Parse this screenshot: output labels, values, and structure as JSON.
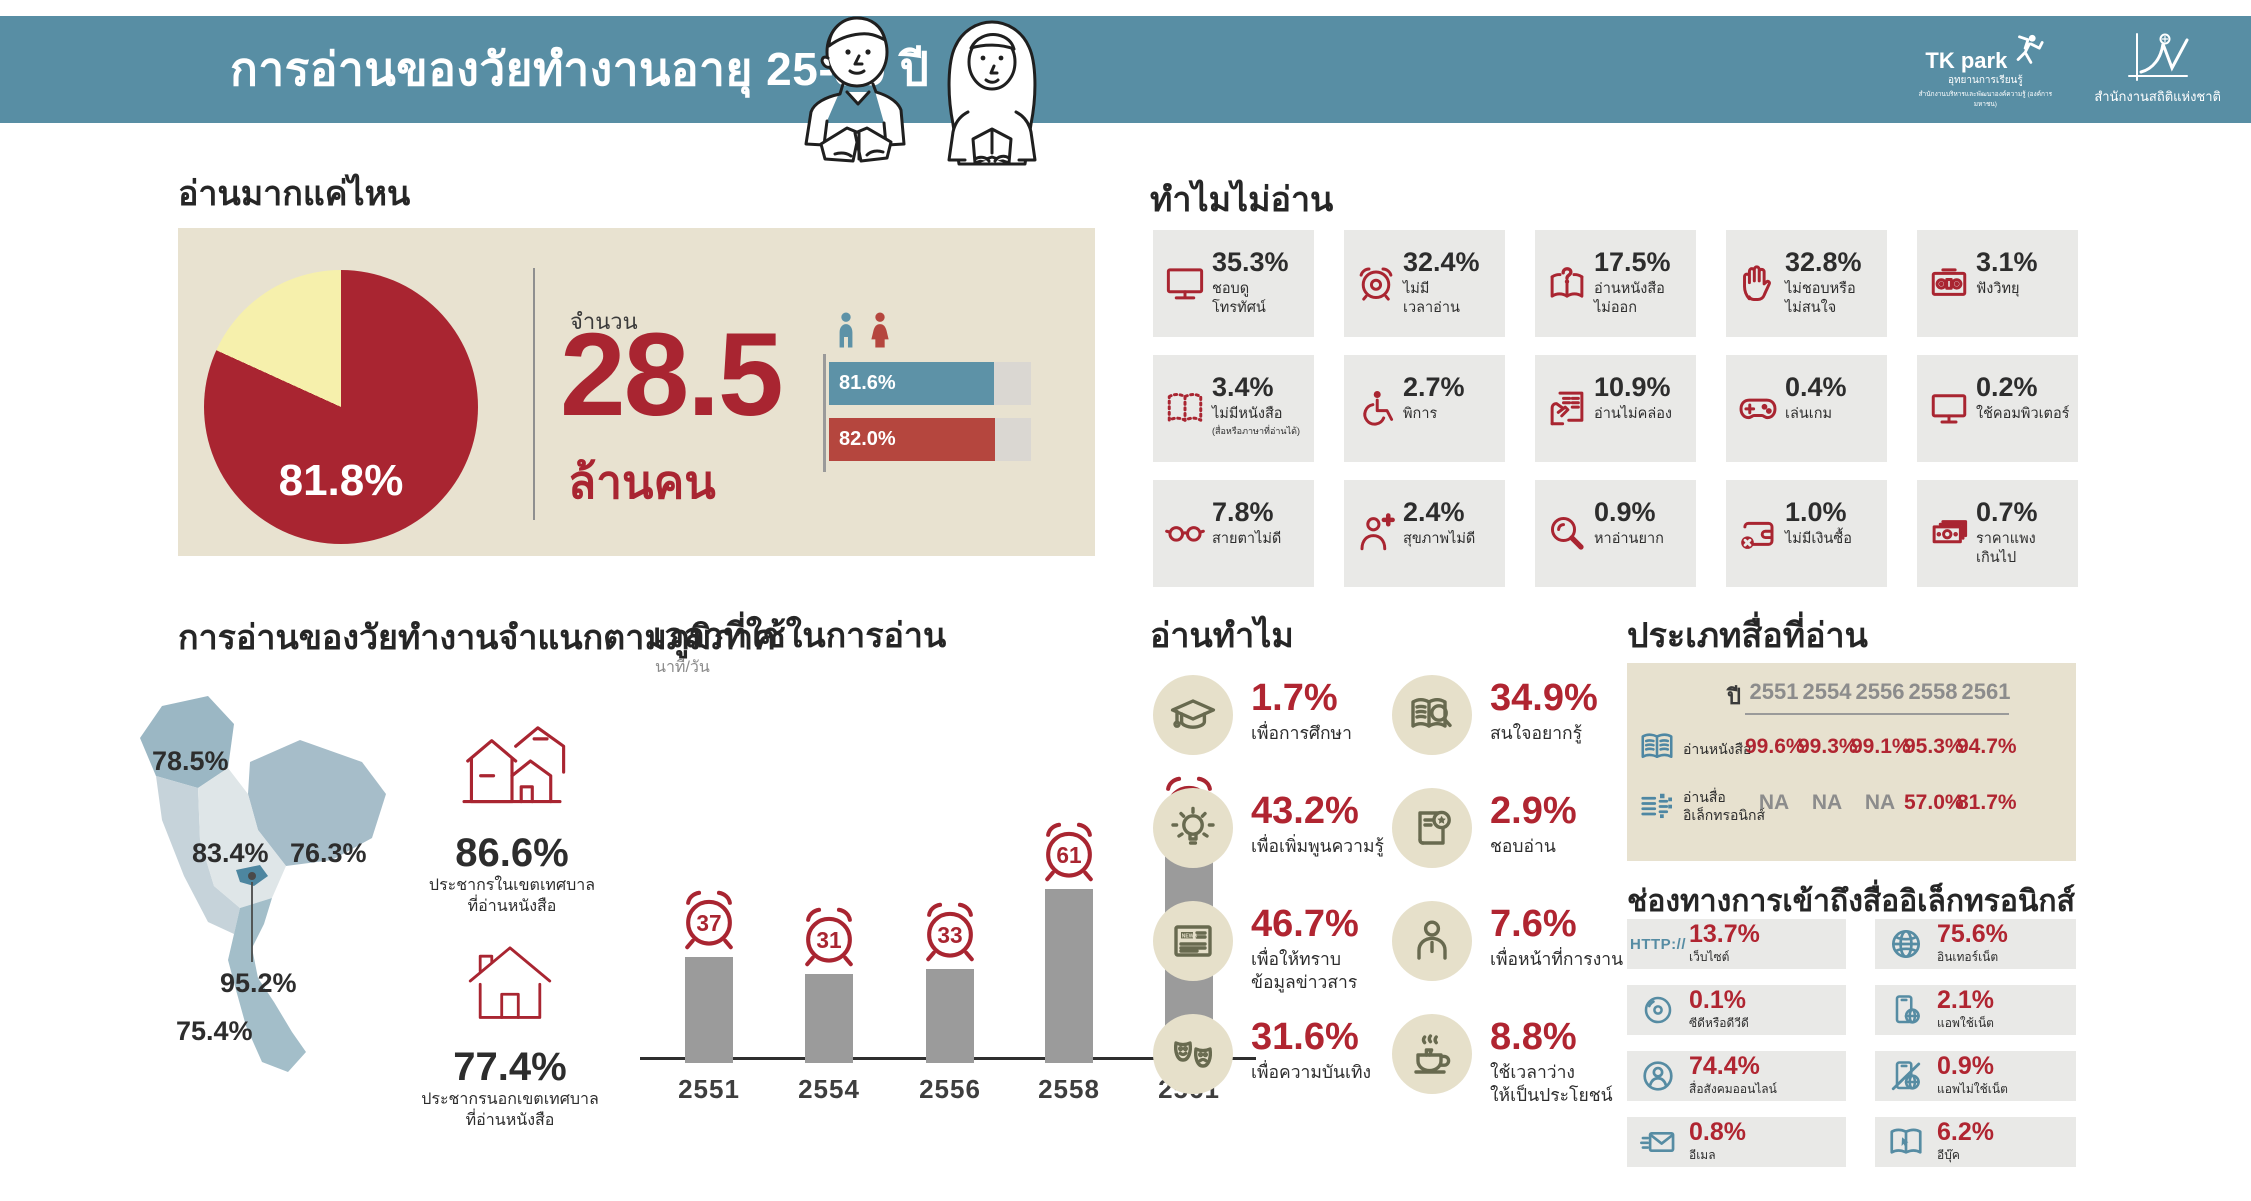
{
  "colors": {
    "teal": "#588ea4",
    "red": "#a92531",
    "pie_yellow": "#f6f0ac",
    "beige": "#e8e2d0",
    "male_blue": "#5d92a7",
    "female_red": "#b5463e",
    "bar_gray": "#9b9b9b",
    "cell_gray": "#e9e9e7",
    "olive": "#686a4f",
    "icon_blue": "#568ca3"
  },
  "header": {
    "title": "การอ่านของวัยทำงานอายุ 25-59 ปี",
    "logo_tkpark": {
      "name": "TK park",
      "line1": "อุทยานการเรียนรู้",
      "line2": "สำนักงานบริหารและพัฒนาองค์ความรู้ (องค์การมหาชน)"
    },
    "logo_nso": {
      "name": "สำนักงานสถิติแห่งชาติ"
    }
  },
  "how_much": {
    "title": "อ่านมากแค่ไหน",
    "pie_label": "81.8%",
    "amount_label": "จำนวน",
    "amount_value": "28.5",
    "amount_unit": "ล้านคน",
    "male_pct": "81.6%",
    "female_pct": "82.0%"
  },
  "why_not": {
    "title": "ทำไมไม่อ่าน",
    "items": [
      {
        "icon": "tv-icon",
        "pct": "35.3%",
        "label": "ชอบดู\nโทรทัศน์"
      },
      {
        "icon": "alarm-clock-icon",
        "pct": "32.4%",
        "label": "ไม่มี\nเวลาอ่าน"
      },
      {
        "icon": "book-question-icon",
        "pct": "17.5%",
        "label": "อ่านหนังสือ\nไม่ออก"
      },
      {
        "icon": "hand-stop-icon",
        "pct": "32.8%",
        "label": "ไม่ชอบหรือ\nไม่สนใจ"
      },
      {
        "icon": "radio-icon",
        "pct": "3.1%",
        "label": "ฟังวิทยุ"
      },
      {
        "icon": "book-dotted-icon",
        "pct": "3.4%",
        "label": "ไม่มีหนังสือ",
        "note": "(สื่อหรือภาษาที่อ่านได้)"
      },
      {
        "icon": "wheelchair-icon",
        "pct": "2.7%",
        "label": "พิการ"
      },
      {
        "icon": "reading-difficulty-icon",
        "pct": "10.9%",
        "label": "อ่านไม่คล่อง"
      },
      {
        "icon": "gamepad-icon",
        "pct": "0.4%",
        "label": "เล่นเกม"
      },
      {
        "icon": "computer-icon",
        "pct": "0.2%",
        "label": "ใช้คอมพิวเตอร์"
      },
      {
        "icon": "eyeglasses-icon",
        "pct": "7.8%",
        "label": "สายตาไม่ดี"
      },
      {
        "icon": "health-icon",
        "pct": "2.4%",
        "label": "สุขภาพไม่ดี"
      },
      {
        "icon": "magnifier-icon",
        "pct": "0.9%",
        "label": "หาอ่านยาก"
      },
      {
        "icon": "wallet-x-icon",
        "pct": "1.0%",
        "label": "ไม่มีเงินซื้อ"
      },
      {
        "icon": "banknotes-icon",
        "pct": "0.7%",
        "label": "ราคาแพง\nเกินไป"
      }
    ]
  },
  "regions": {
    "title": "การอ่านของวัยทำงานจำแนกตามภูมิภาค",
    "north": "78.5%",
    "central": "83.4%",
    "northeast": "76.3%",
    "bangkok": "95.2%",
    "south": "75.4%",
    "urban": {
      "pct": "86.6%",
      "label": "ประชากรในเขตเทศบาล\nที่อ่านหนังสือ"
    },
    "rural": {
      "pct": "77.4%",
      "label": "ประชากรนอกเขตเทศบาล\nที่อ่านหนังสือ"
    }
  },
  "time": {
    "title": "เวลาที่ใช้ในการอ่าน",
    "unit": "นาที/วัน",
    "years": [
      "2551",
      "2554",
      "2556",
      "2558",
      "2561"
    ],
    "values": [
      "37",
      "31",
      "33",
      "61",
      "77"
    ]
  },
  "why_read": {
    "title": "อ่านทำไม",
    "items": [
      {
        "icon": "graduation-cap-icon",
        "pct": "1.7%",
        "label": "เพื่อการศึกษา"
      },
      {
        "icon": "book-magnifier-icon",
        "pct": "34.9%",
        "label": "สนใจอยากรู้"
      },
      {
        "icon": "lightbulb-icon",
        "pct": "43.2%",
        "label": "เพื่อเพิ่มพูนความรู้"
      },
      {
        "icon": "book-star-icon",
        "pct": "2.9%",
        "label": "ชอบอ่าน"
      },
      {
        "icon": "newspaper-icon",
        "pct": "46.7%",
        "label": "เพื่อให้ทราบ\nข้อมูลข่าวสาร"
      },
      {
        "icon": "person-icon",
        "pct": "7.6%",
        "label": "เพื่อหน้าที่การงาน"
      },
      {
        "icon": "theater-masks-icon",
        "pct": "31.6%",
        "label": "เพื่อความบันเทิง"
      },
      {
        "icon": "teacup-icon",
        "pct": "8.8%",
        "label": "ใช้เวลาว่าง\nให้เป็นประโยชน์"
      }
    ]
  },
  "media_types": {
    "title": "ประเภทสื่อที่อ่าน",
    "year_header": "ปี",
    "years": [
      "2551",
      "2554",
      "2556",
      "2558",
      "2561"
    ],
    "rows": [
      {
        "icon": "open-book-icon",
        "label": "อ่านหนังสือ",
        "values": [
          "99.6%",
          "99.3%",
          "99.1%",
          "95.3%",
          "94.7%"
        ]
      },
      {
        "icon": "e-media-icon",
        "label": "อ่านสื่อ\nอิเล็กทรอนิกส์",
        "values": [
          "NA",
          "NA",
          "NA",
          "57.0%",
          "81.7%"
        ]
      }
    ]
  },
  "channels": {
    "title": "ช่องทางการเข้าถึงสื่ออิเล็กทรอนิกส์",
    "http_icon_text": "HTTP://",
    "items": [
      {
        "icon": "http-icon",
        "pct": "13.7%",
        "label": "เว็บไซต์"
      },
      {
        "icon": "globe-icon",
        "pct": "75.6%",
        "label": "อินเทอร์เน็ต"
      },
      {
        "icon": "cd-icon",
        "pct": "0.1%",
        "label": "ซีดีหรือดีวีดี"
      },
      {
        "icon": "phone-net-icon",
        "pct": "2.1%",
        "label": "แอพใช้เน็ต"
      },
      {
        "icon": "social-media-icon",
        "pct": "74.4%",
        "label": "สื่อสังคมออนไลน์"
      },
      {
        "icon": "phone-no-net-icon",
        "pct": "0.9%",
        "label": "แอพไม่ใช้เน็ต"
      },
      {
        "icon": "email-icon",
        "pct": "0.8%",
        "label": "อีเมล"
      },
      {
        "icon": "ebook-icon",
        "pct": "6.2%",
        "label": "อีบุ๊ค"
      }
    ]
  },
  "chart_data": [
    {
      "name": "readers_share",
      "type": "pie",
      "title": "อ่านมากแค่ไหน",
      "values": [
        81.8,
        18.2
      ],
      "shown_label": "81.8%",
      "colors": [
        "#a92531",
        "#f6f0ac"
      ]
    },
    {
      "name": "readers_by_gender",
      "type": "bar",
      "categories": [
        "male",
        "female"
      ],
      "values": [
        81.6,
        82.0
      ],
      "unit": "%",
      "xlim": [
        0,
        100
      ],
      "colors": [
        "#5d92a7",
        "#b5463e"
      ]
    },
    {
      "name": "reading_time",
      "type": "bar",
      "title": "เวลาที่ใช้ในการอ่าน",
      "ylabel": "นาที/วัน",
      "categories": [
        "2551",
        "2554",
        "2556",
        "2558",
        "2561"
      ],
      "values": [
        37,
        31,
        33,
        61,
        77
      ]
    },
    {
      "name": "regional_reading",
      "type": "map",
      "title": "การอ่านของวัยทำงานจำแนกตามภูมิภาค",
      "regions": {
        "north": 78.5,
        "central": 83.4,
        "northeast": 76.3,
        "bangkok": 95.2,
        "south": 75.4
      },
      "urban_pct": 86.6,
      "rural_pct": 77.4
    },
    {
      "name": "media_types",
      "type": "table",
      "title": "ประเภทสื่อที่อ่าน",
      "categories": [
        "2551",
        "2554",
        "2556",
        "2558",
        "2561"
      ],
      "series": [
        {
          "name": "อ่านหนังสือ",
          "values": [
            "99.6%",
            "99.3%",
            "99.1%",
            "95.3%",
            "94.7%"
          ]
        },
        {
          "name": "อ่านสื่ออิเล็กทรอนิกส์",
          "values": [
            "NA",
            "NA",
            "NA",
            "57.0%",
            "81.7%"
          ]
        }
      ]
    }
  ]
}
